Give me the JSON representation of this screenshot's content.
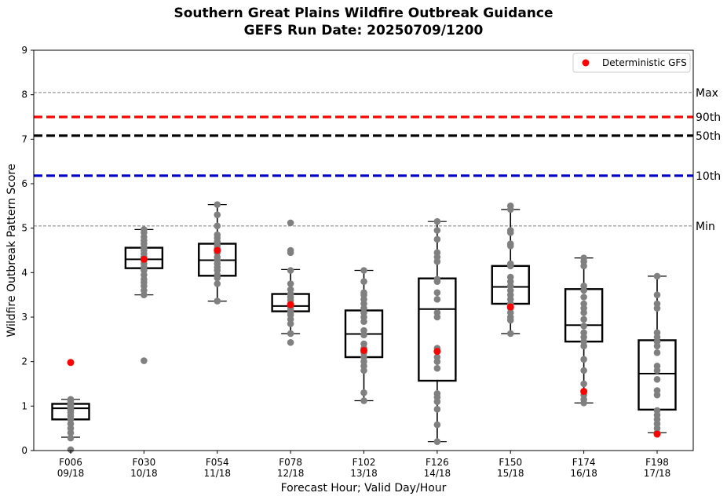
{
  "chart_data": {
    "type": "box",
    "title": "Southern Great Plains Wildfire Outbreak Guidance",
    "subtitle": "GEFS Run Date: 20250709/1200",
    "xlabel": "Forecast Hour; Valid Day/Hour",
    "ylabel": "Wildfire Outbreak Pattern Score",
    "ylim": [
      0,
      9
    ],
    "yticks": [
      "0",
      "1",
      "2",
      "3",
      "4",
      "5",
      "6",
      "7",
      "8",
      "9"
    ],
    "grid": false,
    "legend_position": "top-right",
    "legend": {
      "label": "Deterministic GFS",
      "color": "#ff0000"
    },
    "reference_lines": [
      {
        "label": "Max",
        "value": 8.05,
        "color": "#808080",
        "style": "thin-dashed"
      },
      {
        "label": "90th",
        "value": 7.5,
        "color": "#ff0000",
        "style": "thick-dashed"
      },
      {
        "label": "50th",
        "value": 7.08,
        "color": "#000000",
        "style": "thick-dashed"
      },
      {
        "label": "10th",
        "value": 6.18,
        "color": "#0000cc",
        "style": "thick-dashed"
      },
      {
        "label": "Min",
        "value": 5.05,
        "color": "#808080",
        "style": "thin-dashed"
      }
    ],
    "categories": [
      {
        "hour": "F006",
        "valid": "09/18",
        "whisker_low": 0.3,
        "q1": 0.7,
        "median": 0.95,
        "q3": 1.05,
        "whisker_high": 1.15,
        "gfs": 1.98,
        "members": [
          0.02,
          0.28,
          0.4,
          0.5,
          0.6,
          0.7,
          0.78,
          0.85,
          0.9,
          0.93,
          0.96,
          1.0,
          1.02,
          1.05,
          1.08,
          1.12,
          1.15
        ]
      },
      {
        "hour": "F030",
        "valid": "10/18",
        "whisker_low": 3.5,
        "q1": 4.1,
        "median": 4.3,
        "q3": 4.56,
        "whisker_high": 4.97,
        "gfs": 4.3,
        "members": [
          2.02,
          3.5,
          3.6,
          3.7,
          3.78,
          3.85,
          3.95,
          4.05,
          4.12,
          4.2,
          4.28,
          4.35,
          4.42,
          4.5,
          4.57,
          4.65,
          4.72,
          4.8,
          4.9,
          4.97
        ]
      },
      {
        "hour": "F054",
        "valid": "11/18",
        "whisker_low": 3.36,
        "q1": 3.93,
        "median": 4.28,
        "q3": 4.65,
        "whisker_high": 5.53,
        "gfs": 4.5,
        "members": [
          3.36,
          3.75,
          3.88,
          3.95,
          4.05,
          4.12,
          4.2,
          4.28,
          4.35,
          4.45,
          4.55,
          4.62,
          4.7,
          4.78,
          4.85,
          5.05,
          5.3,
          5.53
        ]
      },
      {
        "hour": "F078",
        "valid": "12/18",
        "whisker_low": 2.63,
        "q1": 3.13,
        "median": 3.25,
        "q3": 3.52,
        "whisker_high": 4.07,
        "gfs": 3.28,
        "members": [
          2.43,
          2.63,
          2.85,
          2.95,
          3.05,
          3.12,
          3.18,
          3.22,
          3.26,
          3.3,
          3.38,
          3.45,
          3.52,
          3.62,
          3.75,
          4.05,
          4.45,
          4.5,
          5.12
        ]
      },
      {
        "hour": "F102",
        "valid": "13/18",
        "whisker_low": 1.12,
        "q1": 2.1,
        "median": 2.62,
        "q3": 3.15,
        "whisker_high": 4.05,
        "gfs": 2.25,
        "members": [
          1.12,
          1.3,
          1.8,
          1.9,
          2.0,
          2.1,
          2.2,
          2.3,
          2.4,
          2.6,
          2.7,
          2.9,
          3.0,
          3.1,
          3.2,
          3.3,
          3.4,
          3.5,
          3.55,
          3.8,
          4.05
        ]
      },
      {
        "hour": "F126",
        "valid": "14/18",
        "whisker_low": 0.2,
        "q1": 1.57,
        "median": 3.18,
        "q3": 3.87,
        "whisker_high": 5.15,
        "gfs": 2.23,
        "members": [
          0.2,
          0.58,
          0.93,
          1.1,
          1.2,
          1.28,
          1.85,
          2.0,
          2.1,
          2.3,
          3.0,
          3.1,
          3.4,
          3.55,
          3.8,
          3.85,
          4.25,
          4.35,
          4.45,
          4.75,
          4.95,
          5.15
        ]
      },
      {
        "hour": "F150",
        "valid": "15/18",
        "whisker_low": 2.63,
        "q1": 3.3,
        "median": 3.68,
        "q3": 4.15,
        "whisker_high": 5.42,
        "gfs": 3.23,
        "members": [
          2.63,
          2.93,
          3.0,
          3.1,
          3.2,
          3.3,
          3.4,
          3.5,
          3.6,
          3.7,
          3.8,
          3.9,
          4.15,
          4.2,
          4.6,
          4.65,
          4.9,
          4.95,
          5.42,
          5.5
        ]
      },
      {
        "hour": "F174",
        "valid": "16/18",
        "whisker_low": 1.07,
        "q1": 2.45,
        "median": 2.82,
        "q3": 3.63,
        "whisker_high": 4.33,
        "gfs": 1.33,
        "members": [
          1.07,
          1.15,
          1.25,
          1.5,
          1.8,
          2.05,
          2.35,
          2.45,
          2.55,
          2.65,
          2.8,
          2.95,
          3.1,
          3.2,
          3.3,
          3.45,
          3.6,
          3.7,
          4.15,
          4.25,
          4.33
        ]
      },
      {
        "hour": "F198",
        "valid": "17/18",
        "whisker_low": 0.4,
        "q1": 0.92,
        "median": 1.73,
        "q3": 2.48,
        "whisker_high": 3.92,
        "gfs": 0.37,
        "members": [
          0.4,
          0.5,
          0.6,
          0.7,
          0.8,
          0.9,
          1.25,
          1.35,
          1.6,
          1.8,
          1.9,
          2.2,
          2.35,
          2.45,
          2.55,
          2.65,
          3.2,
          3.3,
          3.5,
          3.92
        ]
      }
    ]
  }
}
